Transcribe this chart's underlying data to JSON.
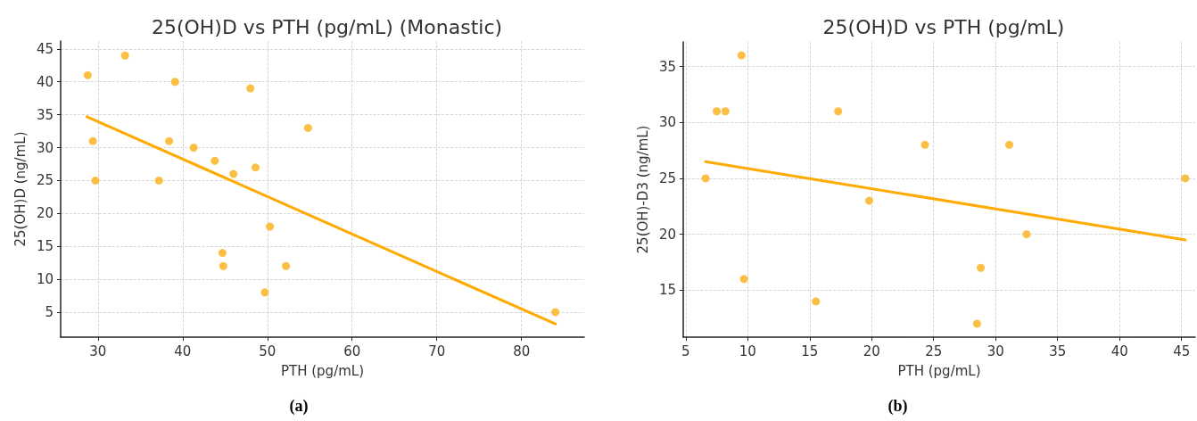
{
  "chart_data": [
    {
      "type": "scatter",
      "title": "25(OH)D vs PTH (pg/mL) (Monastic)",
      "xlabel": "PTH (pg/mL)",
      "ylabel": "25(OH)D (ng/mL)",
      "annotations": [
        "(a)"
      ],
      "xlim": [
        25.6,
        87.4
      ],
      "xticks": [
        30,
        40,
        50,
        60,
        70,
        80
      ],
      "ylim": [
        1.2,
        46.2
      ],
      "yticks": [
        5,
        10,
        15,
        20,
        25,
        30,
        35,
        40,
        45
      ],
      "grid": true,
      "marker": "circle",
      "series": [
        {
          "color": "#fbbc3a",
          "x": [
            28.8,
            33.2,
            39.1,
            48,
            29.4,
            38.4,
            29.7,
            37.2,
            41.3,
            43.8,
            46,
            48.6,
            54.8,
            50.3,
            44.7,
            44.8,
            52.2,
            49.7,
            84
          ],
          "values": [
            41,
            44,
            40,
            39,
            31,
            31,
            25,
            25,
            30,
            28,
            26,
            27,
            33,
            18,
            14,
            12,
            12,
            8,
            5
          ]
        },
        {
          "type": "line",
          "color": "#ffaa00",
          "marker": "none",
          "x": [
            28.7,
            84
          ],
          "values": [
            34.7,
            3.2
          ]
        }
      ]
    },
    {
      "type": "scatter",
      "title": "25(OH)D vs PTH (pg/mL)",
      "xlabel": "PTH (pg/mL)",
      "ylabel": "25(OH)-D3 (ng/mL)",
      "annotations": [
        "(b)"
      ],
      "xlim": [
        4.8,
        46.1
      ],
      "xticks": [
        5,
        10,
        15,
        20,
        25,
        30,
        35,
        40,
        45
      ],
      "ylim": [
        10.8,
        37.2
      ],
      "yticks": [
        15,
        20,
        25,
        30,
        35
      ],
      "grid": true,
      "marker": "circle",
      "series": [
        {
          "color": "#fbbc3a",
          "x": [
            6.6,
            7.5,
            8.2,
            9.5,
            9.7,
            15.5,
            17.3,
            19.8,
            24.3,
            28.5,
            28.8,
            31.1,
            32.5,
            45.3
          ],
          "values": [
            25,
            31,
            31,
            36,
            16,
            14,
            31,
            23,
            28,
            12,
            17,
            28,
            20,
            25
          ]
        },
        {
          "type": "line",
          "color": "#ffaa00",
          "marker": "none",
          "x": [
            6.6,
            45.3
          ],
          "values": [
            26.5,
            19.5
          ]
        }
      ]
    }
  ]
}
